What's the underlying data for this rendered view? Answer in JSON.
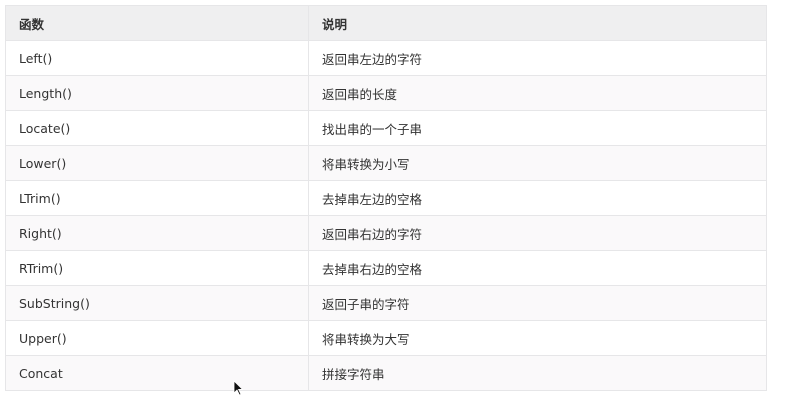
{
  "table": {
    "headers": [
      "函数",
      "说明"
    ],
    "rows": [
      [
        "Left()",
        "返回串左边的字符"
      ],
      [
        "Length()",
        "返回串的长度"
      ],
      [
        "Locate()",
        "找出串的一个子串"
      ],
      [
        "Lower()",
        "将串转换为小写"
      ],
      [
        "LTrim()",
        "去掉串左边的空格"
      ],
      [
        "Right()",
        "返回串右边的字符"
      ],
      [
        "RTrim()",
        "去掉串右边的空格"
      ],
      [
        "SubString()",
        "返回子串的字符"
      ],
      [
        "Upper()",
        "将串转换为大写"
      ],
      [
        "Concat",
        "拼接字符串"
      ]
    ]
  }
}
